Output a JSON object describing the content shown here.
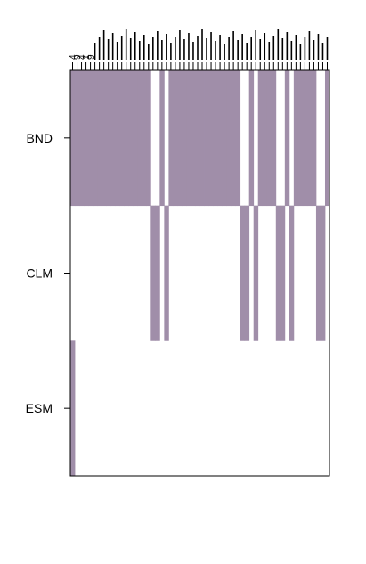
{
  "chart_data": {
    "type": "heatmap",
    "fill_color": "#a08ea9",
    "background": "#ffffff",
    "grid": false,
    "legend": "none",
    "rows": [
      "BND",
      "CLM",
      "ESM"
    ],
    "column_count": 58,
    "column_labels": [],
    "column_labels_note_visible": [
      "4",
      "9",
      "4",
      "1",
      "9"
    ],
    "matrix": [
      [
        1,
        1,
        1,
        1,
        1,
        1,
        1,
        1,
        1,
        1,
        1,
        1,
        1,
        1,
        1,
        1,
        1,
        1,
        0,
        0,
        1,
        0,
        1,
        1,
        1,
        1,
        1,
        1,
        1,
        1,
        1,
        1,
        1,
        1,
        1,
        1,
        1,
        1,
        0,
        0,
        1,
        0,
        1,
        1,
        1,
        1,
        0,
        0,
        1,
        0,
        1,
        1,
        1,
        1,
        1,
        0,
        0,
        1
      ],
      [
        0,
        0,
        0,
        0,
        0,
        0,
        0,
        0,
        0,
        0,
        0,
        0,
        0,
        0,
        0,
        0,
        0,
        0,
        1,
        1,
        0,
        1,
        0,
        0,
        0,
        0,
        0,
        0,
        0,
        0,
        0,
        0,
        0,
        0,
        0,
        0,
        0,
        0,
        1,
        1,
        0,
        1,
        0,
        0,
        0,
        0,
        1,
        1,
        0,
        1,
        0,
        0,
        0,
        0,
        0,
        1,
        1,
        0
      ],
      [
        1,
        0,
        0,
        0,
        0,
        0,
        0,
        0,
        0,
        0,
        0,
        0,
        0,
        0,
        0,
        0,
        0,
        0,
        0,
        0,
        0,
        0,
        0,
        0,
        0,
        0,
        0,
        0,
        0,
        0,
        0,
        0,
        0,
        0,
        0,
        0,
        0,
        0,
        0,
        0,
        0,
        0,
        0,
        0,
        0,
        0,
        0,
        0,
        0,
        0,
        0,
        0,
        0,
        0,
        0,
        0,
        0,
        0
      ]
    ]
  }
}
